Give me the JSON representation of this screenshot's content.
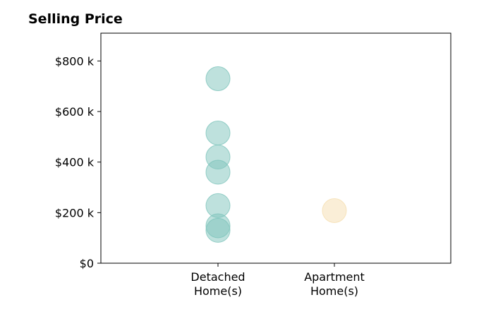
{
  "chart_data": {
    "type": "scatter",
    "title": "Selling Price",
    "xlabel": "",
    "ylabel": "",
    "categories": [
      [
        "Detached",
        "Home(s)"
      ],
      [
        "Apartment",
        "Home(s)"
      ]
    ],
    "ylim": [
      0,
      910000
    ],
    "yticks": [
      {
        "value": 0,
        "label": "$0"
      },
      {
        "value": 200000,
        "label": "$200 k"
      },
      {
        "value": 400000,
        "label": "$400 k"
      },
      {
        "value": 600000,
        "label": "$600 k"
      },
      {
        "value": 800000,
        "label": "$800 k"
      }
    ],
    "grid": false,
    "series": [
      {
        "category_index": 0,
        "color": "#7ec4bb",
        "values": [
          730000,
          515000,
          420000,
          360000,
          228000,
          148000,
          130000
        ]
      },
      {
        "category_index": 1,
        "color": "#f5deb0",
        "values": [
          208000
        ]
      }
    ]
  }
}
